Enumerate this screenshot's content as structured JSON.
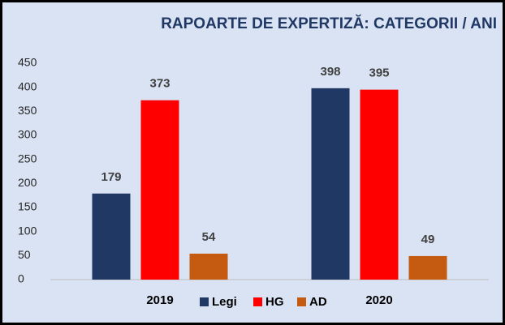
{
  "chart_data": {
    "type": "bar",
    "title": "RAPOARTE DE EXPERTIZĂ: CATEGORII / ANI",
    "categories": [
      "2019",
      "2020"
    ],
    "series": [
      {
        "name": "Legi",
        "color": "#203864",
        "values": [
          179,
          398
        ]
      },
      {
        "name": "HG",
        "color": "#ff0000",
        "values": [
          373,
          395
        ]
      },
      {
        "name": "AD",
        "color": "#c55a11",
        "values": [
          54,
          49
        ]
      }
    ],
    "ylim": [
      0,
      450
    ],
    "yticks": [
      0,
      50,
      100,
      150,
      200,
      250,
      300,
      350,
      400,
      450
    ],
    "grid": false,
    "legend": "bottom"
  }
}
